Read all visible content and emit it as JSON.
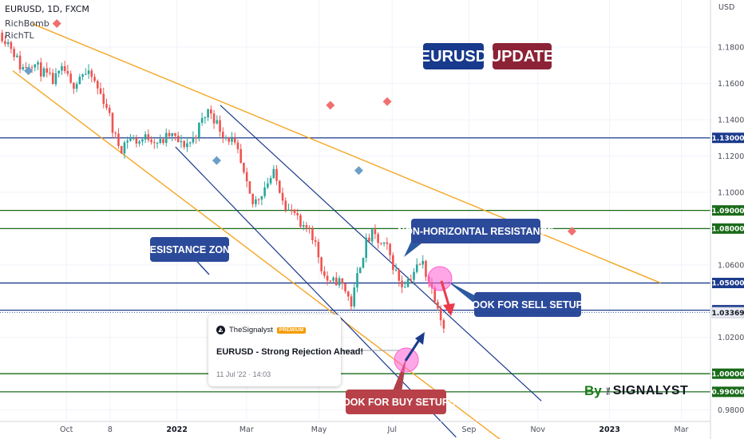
{
  "header": {
    "symbol_line": "EURUSD, 1D, FXCM",
    "indicator_1": "RichBomb",
    "indicator_2": "RichTL"
  },
  "title": {
    "left": "EURUSD",
    "right": "UPDATE",
    "left_color": "#173a8c",
    "right_color": "#8c2236"
  },
  "annotations": {
    "resistance_zone": "RESISTANCE ZONE",
    "non_horizontal_resistance": "NON-HORIZONTAL RESISTANCE",
    "sell_setups": "LOOK FOR SELL SETUPS",
    "buy_setups": "LOOK FOR BUY SETUPS"
  },
  "idea_card": {
    "author": "TheSignalyst",
    "badge": "PREMIUM",
    "headline": "EURUSD - Strong Rejection Ahead!",
    "date": "11 Jul '22 · 14:03"
  },
  "brand": {
    "by": "By",
    "the": "THE",
    "name": "SIGNALYST"
  },
  "colors": {
    "up": "#26a69a",
    "down": "#ef5350",
    "trend": "#f5a623",
    "channel": "#1a3a8c",
    "level_blue": "#1a3a8c",
    "level_green": "#1a6b1a",
    "highlight": "#ff5fd2"
  },
  "chart_data": {
    "type": "candlestick",
    "symbol": "EURUSD",
    "timeframe": "1D",
    "currency_label": "USD",
    "ylim": [
      0.964,
      1.206
    ],
    "y_ticks": [
      1.18,
      1.16,
      1.14,
      1.12,
      1.1,
      1.06,
      1.02,
      0.98
    ],
    "y_tick_labels": [
      "1.18000",
      "1.16000",
      "1.14000",
      "1.12000",
      "1.10000",
      "1.06000",
      "1.02000",
      "0.98000"
    ],
    "x_ticks": [
      "Oct",
      "8",
      "2022",
      "Mar",
      "May",
      "Jul",
      "Sep",
      "Nov",
      "2023",
      "Mar"
    ],
    "levels": [
      {
        "value": 1.13,
        "label": "1.13000",
        "color": "level_blue"
      },
      {
        "value": 1.09,
        "label": "1.09000",
        "color": "level_green"
      },
      {
        "value": 1.08,
        "label": "1.08000",
        "color": "level_green"
      },
      {
        "value": 1.05,
        "label": "1.05000",
        "color": "level_blue"
      },
      {
        "value": 1.035,
        "label": "1.03500",
        "color": "level_blue"
      },
      {
        "value": 1.0,
        "label": "1.00000",
        "color": "level_green"
      },
      {
        "value": 0.99,
        "label": "0.99000",
        "color": "level_green"
      }
    ],
    "current_price": {
      "value": 1.0337,
      "label": "1.03369"
    },
    "price_path": [
      [
        0.0,
        1.188
      ],
      [
        0.015,
        1.181
      ],
      [
        0.03,
        1.168
      ],
      [
        0.045,
        1.172
      ],
      [
        0.06,
        1.166
      ],
      [
        0.075,
        1.161
      ],
      [
        0.09,
        1.168
      ],
      [
        0.1,
        1.158
      ],
      [
        0.115,
        1.166
      ],
      [
        0.13,
        1.163
      ],
      [
        0.14,
        1.155
      ],
      [
        0.15,
        1.148
      ],
      [
        0.16,
        1.132
      ],
      [
        0.17,
        1.124
      ],
      [
        0.18,
        1.13
      ],
      [
        0.195,
        1.128
      ],
      [
        0.21,
        1.131
      ],
      [
        0.225,
        1.127
      ],
      [
        0.24,
        1.132
      ],
      [
        0.255,
        1.126
      ],
      [
        0.27,
        1.128
      ],
      [
        0.285,
        1.14
      ],
      [
        0.295,
        1.146
      ],
      [
        0.305,
        1.138
      ],
      [
        0.315,
        1.132
      ],
      [
        0.325,
        1.129
      ],
      [
        0.335,
        1.121
      ],
      [
        0.345,
        1.106
      ],
      [
        0.355,
        1.093
      ],
      [
        0.365,
        1.098
      ],
      [
        0.375,
        1.105
      ],
      [
        0.385,
        1.11
      ],
      [
        0.395,
        1.101
      ],
      [
        0.405,
        1.09
      ],
      [
        0.415,
        1.088
      ],
      [
        0.425,
        1.078
      ],
      [
        0.435,
        1.082
      ],
      [
        0.445,
        1.07
      ],
      [
        0.455,
        1.055
      ],
      [
        0.465,
        1.049
      ],
      [
        0.475,
        1.052
      ],
      [
        0.485,
        1.047
      ],
      [
        0.495,
        1.038
      ],
      [
        0.505,
        1.058
      ],
      [
        0.515,
        1.072
      ],
      [
        0.525,
        1.077
      ],
      [
        0.535,
        1.071
      ],
      [
        0.545,
        1.069
      ],
      [
        0.555,
        1.058
      ],
      [
        0.565,
        1.049
      ],
      [
        0.575,
        1.052
      ],
      [
        0.585,
        1.058
      ],
      [
        0.595,
        1.061
      ],
      [
        0.605,
        1.049
      ],
      [
        0.615,
        1.04
      ],
      [
        0.625,
        1.025
      ],
      [
        0.635,
        1.006
      ],
      [
        0.645,
        1.003
      ],
      [
        0.655,
        1.008
      ],
      [
        0.665,
        1.017
      ],
      [
        0.675,
        1.02
      ],
      [
        0.685,
        1.014
      ],
      [
        0.695,
        1.019
      ],
      [
        0.705,
        1.022
      ],
      [
        0.715,
        1.018
      ],
      [
        0.725,
        1.021
      ],
      [
        0.735,
        1.026
      ],
      [
        0.745,
        1.03
      ]
    ],
    "swing_markers": [
      {
        "t": 0.08,
        "price": 1.193,
        "type": "high"
      },
      {
        "t": 0.04,
        "price": 1.167,
        "type": "low"
      },
      {
        "t": 0.305,
        "price": 1.1175,
        "type": "low"
      },
      {
        "t": 0.465,
        "price": 1.148,
        "type": "high"
      },
      {
        "t": 0.505,
        "price": 1.112,
        "type": "low"
      },
      {
        "t": 0.545,
        "price": 1.15,
        "type": "high"
      },
      {
        "t": 0.805,
        "price": 1.0785,
        "type": "high"
      },
      {
        "t": 0.785,
        "price": 1.0345,
        "type": "low"
      }
    ]
  }
}
